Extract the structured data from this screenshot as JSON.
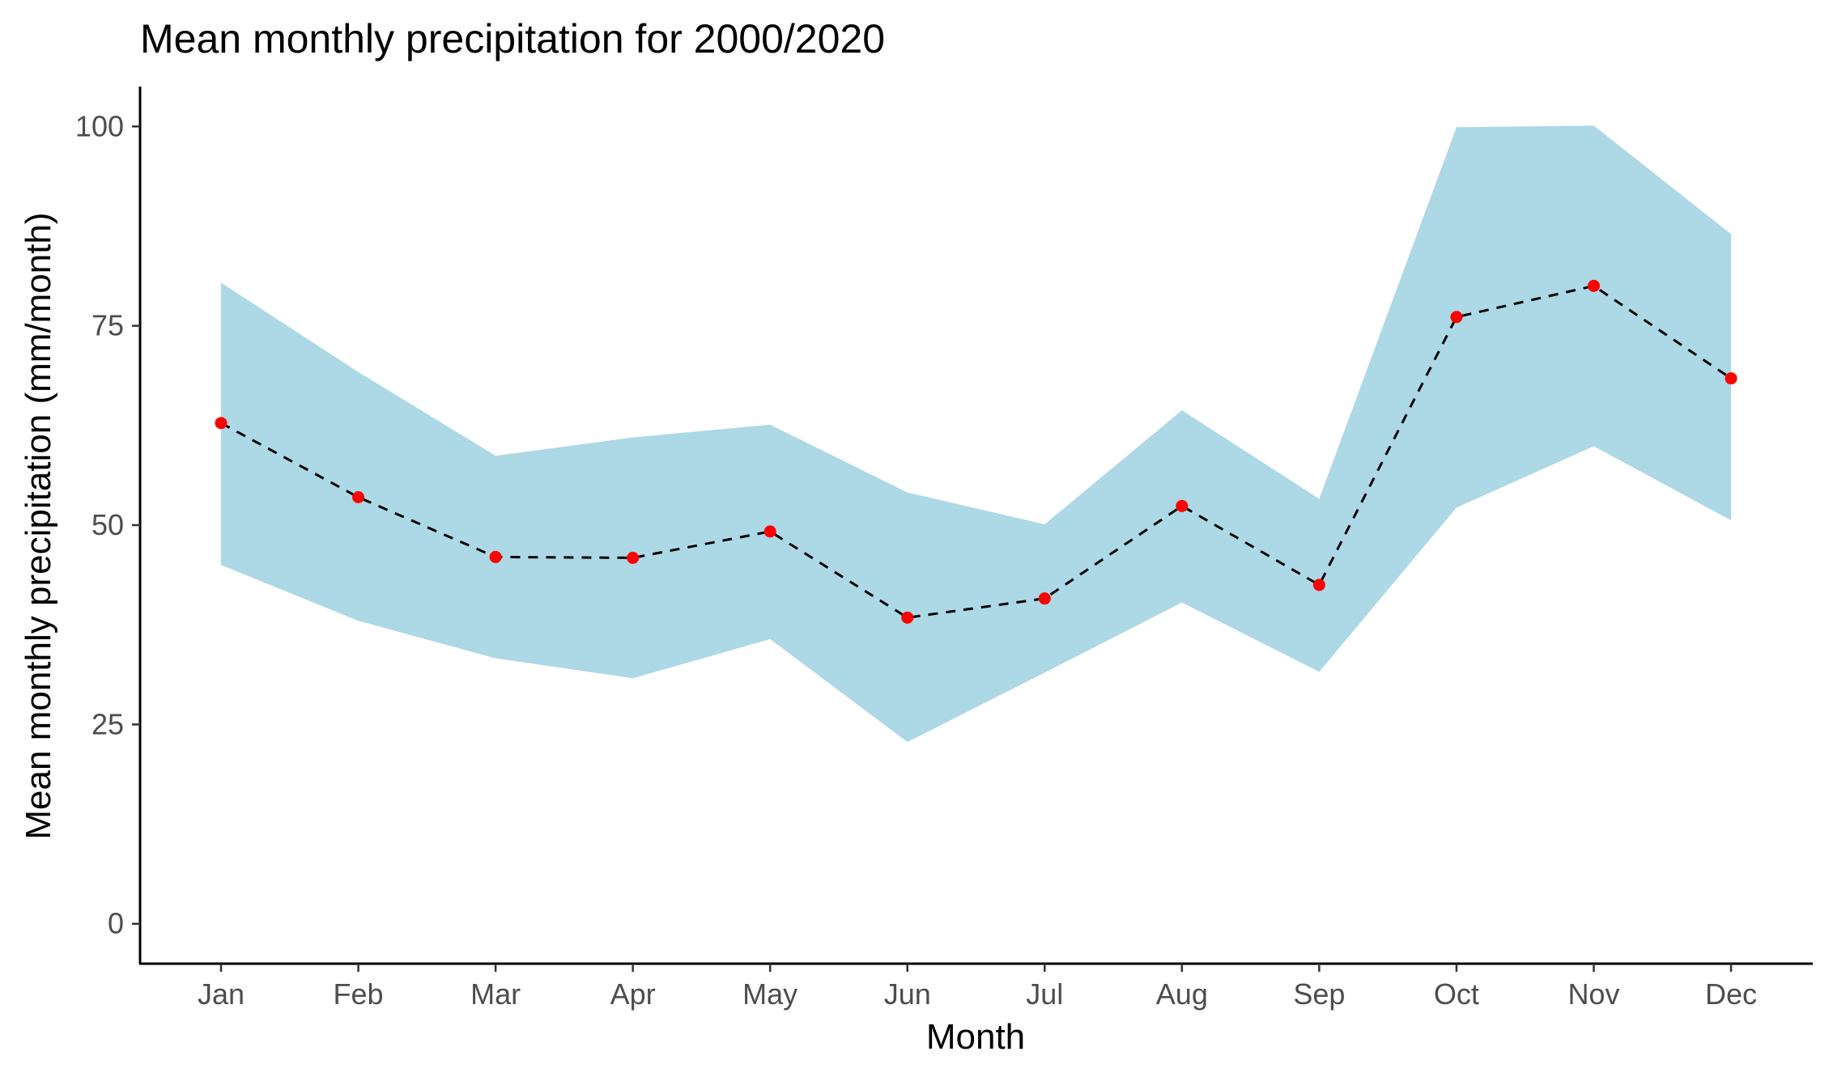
{
  "chart_data": {
    "type": "line",
    "title": "Mean monthly precipitation for 2000/2020",
    "xlabel": "Month",
    "ylabel": "Mean monthly precipitation (mm/month)",
    "categories": [
      "Jan",
      "Feb",
      "Mar",
      "Apr",
      "May",
      "Jun",
      "Jul",
      "Aug",
      "Sep",
      "Oct",
      "Nov",
      "Dec"
    ],
    "series": [
      {
        "values": [
          62.8,
          53.5,
          46.0,
          45.9,
          49.2,
          38.4,
          40.8,
          52.4,
          42.5,
          76.1,
          80.0,
          68.4
        ],
        "line_style": "dashed",
        "line_color": "#000000",
        "point_color": "#ff0000"
      }
    ],
    "band": {
      "lower": [
        45.0,
        38.0,
        33.3,
        30.8,
        35.7,
        22.8,
        31.5,
        40.3,
        31.6,
        52.2,
        59.9,
        50.6
      ],
      "upper": [
        80.4,
        69.2,
        58.7,
        61.0,
        62.6,
        54.1,
        50.1,
        64.4,
        53.3,
        99.9,
        100.1,
        86.5
      ],
      "color": "#add8e6"
    },
    "ylim": [
      -5,
      105
    ],
    "yticks": [
      0,
      25,
      50,
      75,
      100
    ],
    "grid": false,
    "legend": "none"
  }
}
